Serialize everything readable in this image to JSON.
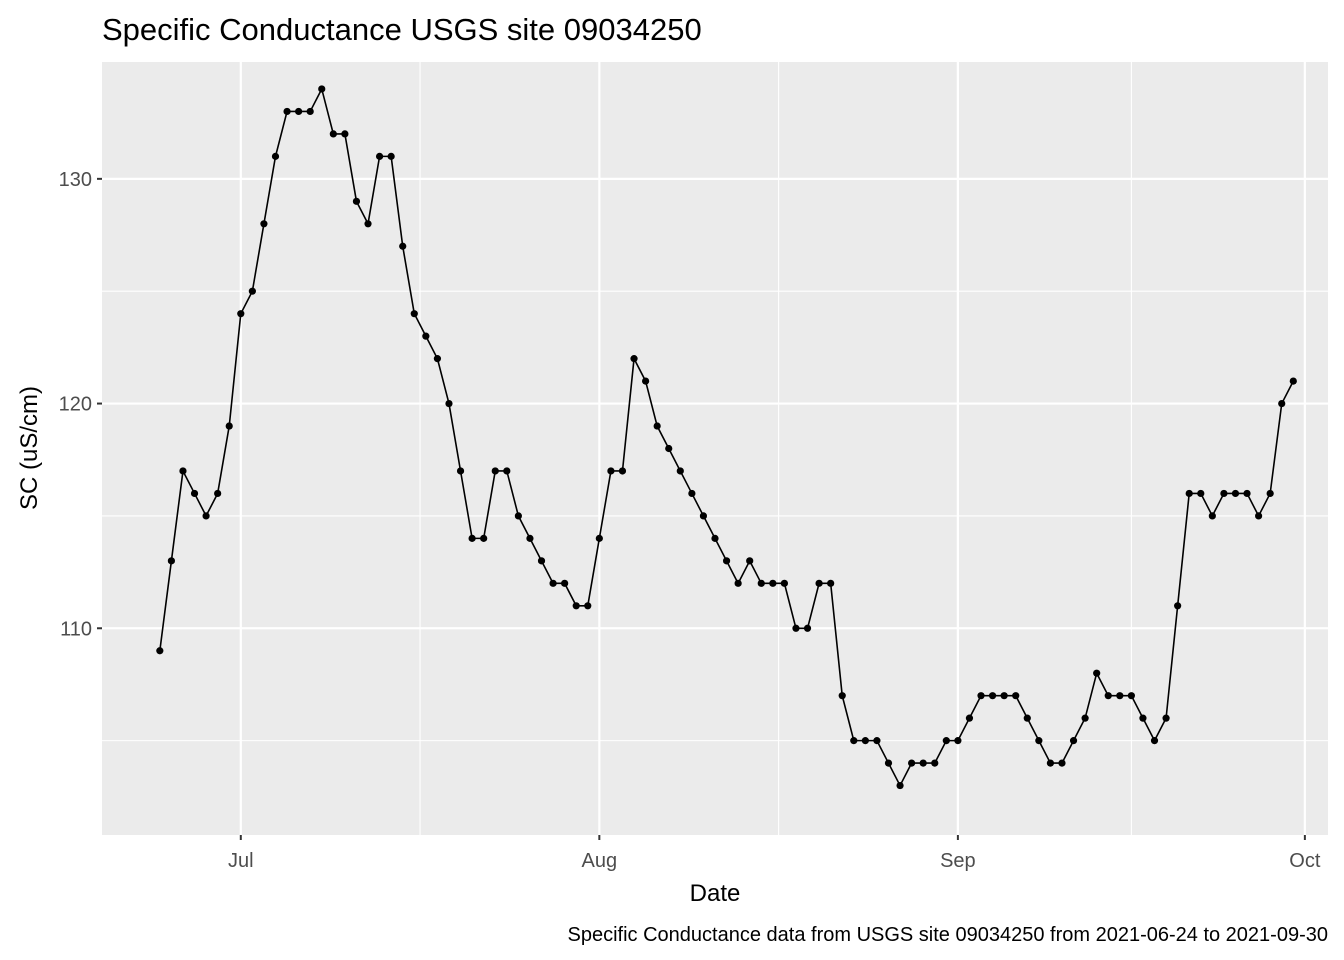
{
  "chart_data": {
    "type": "line",
    "title": "Specific Conductance USGS site 09034250",
    "xlabel": "Date",
    "ylabel": "SC (uS/cm)",
    "caption": "Specific Conductance data from USGS site 09034250 from 2021-06-24 to 2021-09-30",
    "x_start": "2021-06-24",
    "x_end": "2021-09-30",
    "xlim": [
      "2021-06-19",
      "2021-10-03"
    ],
    "ylim": [
      100.8,
      135.2
    ],
    "x_ticks": [
      {
        "date": "2021-07-01",
        "label": "Jul"
      },
      {
        "date": "2021-08-01",
        "label": "Aug"
      },
      {
        "date": "2021-09-01",
        "label": "Sep"
      },
      {
        "date": "2021-10-01",
        "label": "Oct"
      }
    ],
    "x_minor_ticks": [
      "2021-07-16.5",
      "2021-08-16.5",
      "2021-09-16"
    ],
    "y_ticks": [
      110,
      120,
      130
    ],
    "y_minor_ticks": [
      105,
      115,
      125
    ],
    "grid": true,
    "legend": "none",
    "series": [
      {
        "values": [
          109,
          113,
          117,
          116,
          115,
          116,
          119,
          124,
          125,
          128,
          131,
          133,
          133,
          133,
          134,
          132,
          132,
          129,
          128,
          131,
          131,
          127,
          124,
          123,
          122,
          120,
          117,
          114,
          114,
          117,
          117,
          115,
          114,
          113,
          112,
          112,
          111,
          111,
          114,
          117,
          117,
          122,
          121,
          119,
          118,
          117,
          116,
          115,
          114,
          113,
          112,
          113,
          112,
          112,
          112,
          110,
          110,
          112,
          112,
          107,
          105,
          105,
          105,
          104,
          103,
          104,
          104,
          104,
          105,
          105,
          106,
          107,
          107,
          107,
          107,
          106,
          105,
          104,
          104,
          105,
          106,
          108,
          107,
          107,
          107,
          106,
          105,
          106,
          111,
          116,
          116,
          115,
          116,
          116,
          116,
          115,
          116,
          120,
          121
        ]
      }
    ],
    "colors": {
      "panel": "#ebebeb",
      "grid": "#ffffff",
      "line": "#000000",
      "tick": "#333333"
    }
  }
}
